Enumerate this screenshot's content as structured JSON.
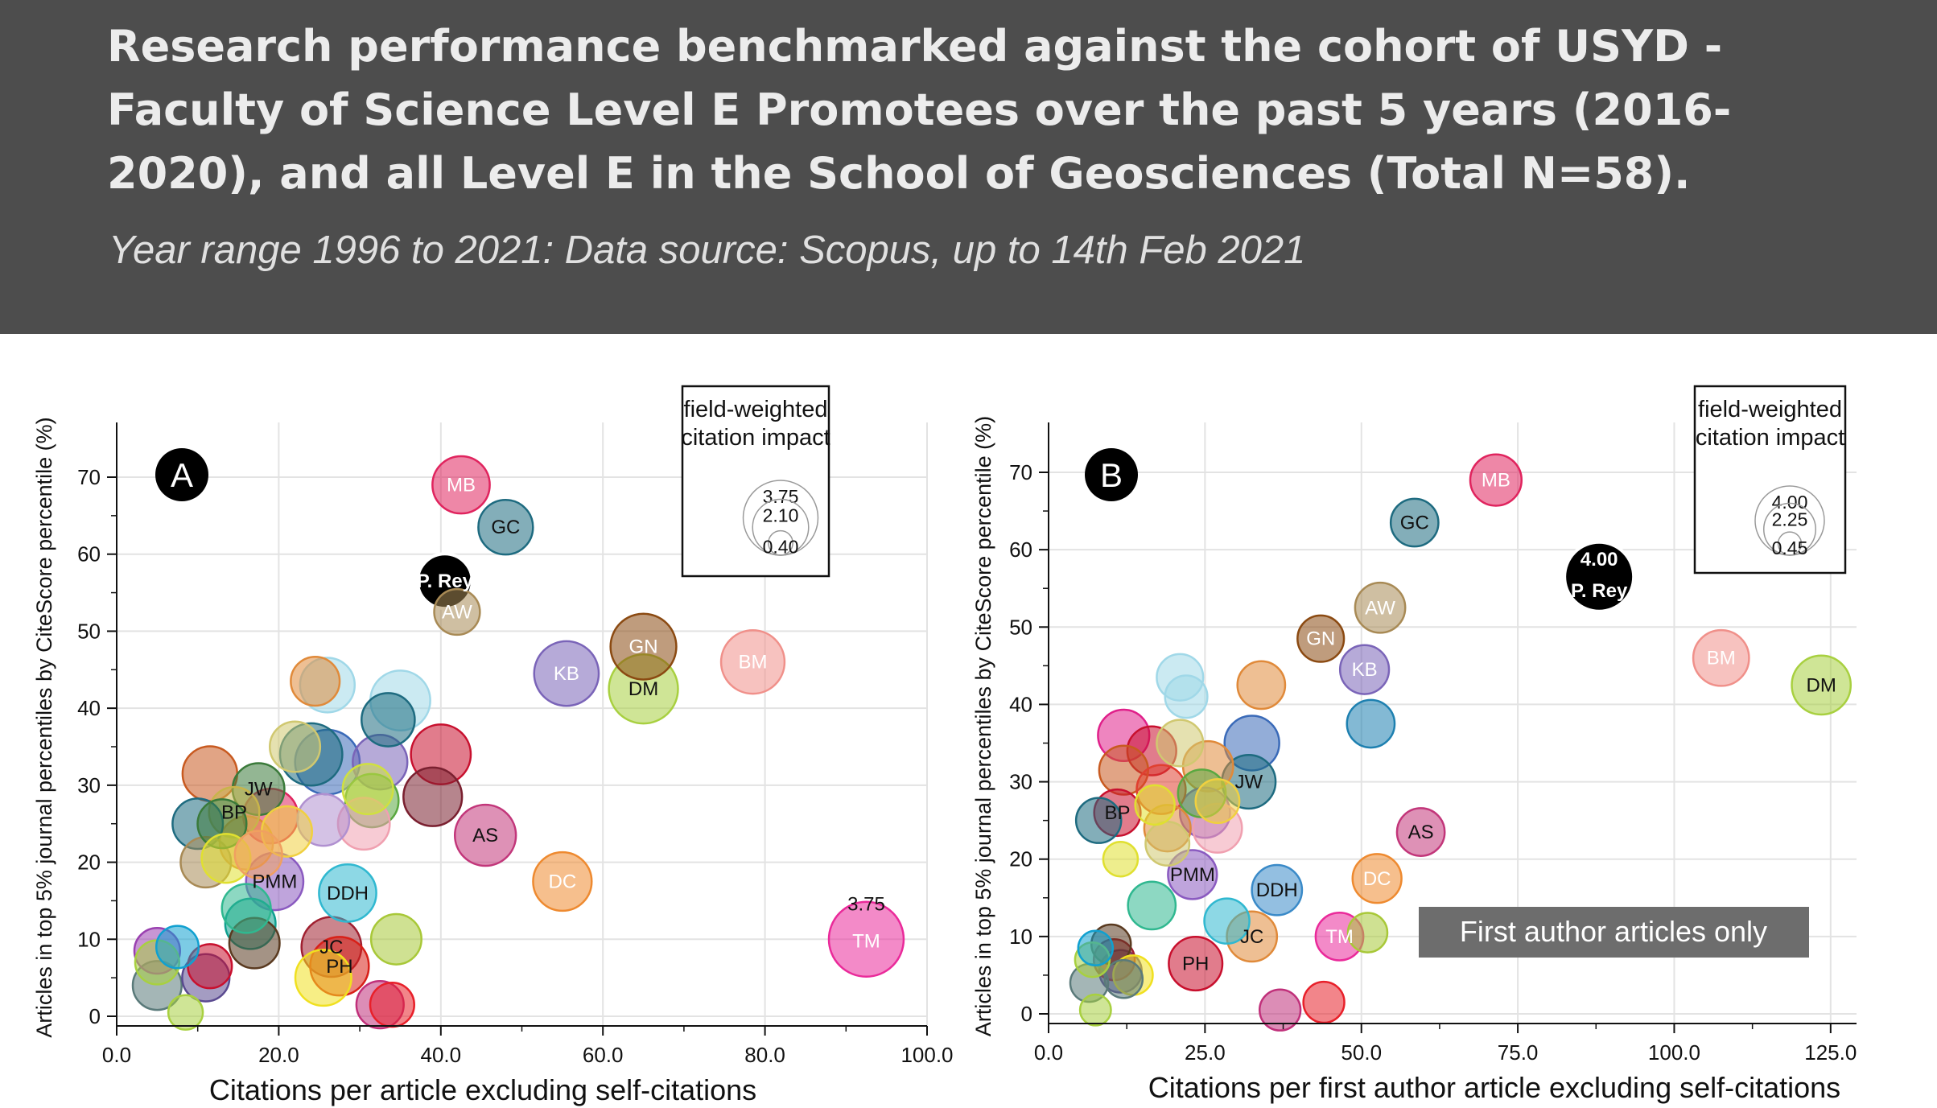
{
  "header": {
    "title": "Research performance benchmarked against the cohort of USYD - Faculty of Science Level E Promotees over the past 5 years (2016-2020), and all Level E in the School of Geosciences (Total N=58).",
    "subtitle": "Year range 1996 to 2021: Data source: Scopus, up to 14th Feb 2021",
    "background_color": "#4d4d4d"
  },
  "chart_data": [
    {
      "type": "scatter",
      "panel_label": "A",
      "xlabel": "Citations per article excluding self-citations",
      "ylabel": "Articles in top 5% journal percentiles by CiteScore percentile (%)",
      "xlim": [
        0,
        100
      ],
      "ylim": [
        0,
        75
      ],
      "xticks": [
        0,
        20,
        40,
        60,
        80,
        100
      ],
      "xtick_labels": [
        "0.0",
        "20.0",
        "40.0",
        "60.0",
        "80.0",
        "100.0"
      ],
      "yticks": [
        0,
        10,
        20,
        30,
        40,
        50,
        60,
        70
      ],
      "ytick_labels": [
        "0",
        "10",
        "20",
        "30",
        "40",
        "50",
        "60",
        "70"
      ],
      "grid": true,
      "size_legend": {
        "title": "field-weighted citation impact",
        "values": [
          "3.75",
          "2.10",
          "0.40"
        ],
        "placement": "top-right"
      },
      "points": [
        {
          "label": "MB",
          "x": 42.5,
          "y": 69,
          "size": 2.2,
          "color": "#e0245e"
        },
        {
          "label": "GC",
          "x": 48,
          "y": 63.5,
          "size": 2.0,
          "color": "#1e6b80"
        },
        {
          "label": "P. Rey",
          "x": 40.5,
          "y": 56.5,
          "size": 2.0,
          "color": "#000000",
          "highlight": true
        },
        {
          "label": "AW",
          "x": 42,
          "y": 52.5,
          "size": 1.4,
          "color": "#a88a55"
        },
        {
          "label": "GN",
          "x": 65,
          "y": 48,
          "size": 2.9,
          "color": "#8b4a12"
        },
        {
          "label": "BM",
          "x": 78.5,
          "y": 46,
          "size": 2.7,
          "color": "#f0908a"
        },
        {
          "label": "KB",
          "x": 55.5,
          "y": 44.5,
          "size": 2.8,
          "color": "#7a64b8"
        },
        {
          "label": "DM",
          "x": 65,
          "y": 42.5,
          "size": 3.2,
          "color": "#a8d040"
        },
        {
          "label": "JW",
          "x": 17.5,
          "y": 29.5,
          "size": 1.8,
          "color": "#3a7a3a"
        },
        {
          "label": "BP",
          "x": 14.5,
          "y": 26.5,
          "size": 1.7,
          "color": "#c8b44a"
        },
        {
          "label": "AS",
          "x": 45.5,
          "y": 23.5,
          "size": 2.5,
          "color": "#c2367a"
        },
        {
          "label": "DC",
          "x": 55,
          "y": 17.5,
          "size": 2.3,
          "color": "#ee8a30"
        },
        {
          "label": "PMM",
          "x": 19.5,
          "y": 17.5,
          "size": 2.2,
          "color": "#8a5ac0"
        },
        {
          "label": "DDH",
          "x": 28.5,
          "y": 16,
          "size": 2.2,
          "color": "#30b8d0"
        },
        {
          "label": "JC",
          "x": 26.5,
          "y": 9,
          "size": 2.4,
          "color": "#a02030"
        },
        {
          "label": "PH",
          "x": 27.5,
          "y": 6.5,
          "size": 2.3,
          "color": "#d82018"
        },
        {
          "label": "TM",
          "x": 92.5,
          "y": 10,
          "size": 3.75,
          "color": "#ea2a9a",
          "value_label": "3.75"
        },
        {
          "label": "",
          "x": 24.5,
          "y": 43.5,
          "size": 1.6,
          "color": "#e08a3a"
        },
        {
          "label": "",
          "x": 26,
          "y": 43,
          "size": 2.0,
          "color": "#a0d8e8"
        },
        {
          "label": "",
          "x": 35,
          "y": 41,
          "size": 2.4,
          "color": "#a0d8e8"
        },
        {
          "label": "",
          "x": 33.5,
          "y": 38.5,
          "size": 1.9,
          "color": "#1e6b80"
        },
        {
          "label": "",
          "x": 22,
          "y": 35,
          "size": 1.7,
          "color": "#d0c870"
        },
        {
          "label": "",
          "x": 24,
          "y": 34,
          "size": 2.6,
          "color": "#1e6b80"
        },
        {
          "label": "",
          "x": 26,
          "y": 33,
          "size": 2.8,
          "color": "#3a6ab8"
        },
        {
          "label": "",
          "x": 32.5,
          "y": 33,
          "size": 2.0,
          "color": "#7a64b8"
        },
        {
          "label": "",
          "x": 40,
          "y": 34,
          "size": 2.4,
          "color": "#c8102e"
        },
        {
          "label": "",
          "x": 11.5,
          "y": 31.5,
          "size": 2.0,
          "color": "#c85a20"
        },
        {
          "label": "",
          "x": 31,
          "y": 29.5,
          "size": 1.7,
          "color": "#d0e040"
        },
        {
          "label": "",
          "x": 31.5,
          "y": 28,
          "size": 1.9,
          "color": "#5aa840"
        },
        {
          "label": "",
          "x": 39,
          "y": 28.5,
          "size": 2.3,
          "color": "#7a2030"
        },
        {
          "label": "",
          "x": 30.5,
          "y": 25,
          "size": 1.8,
          "color": "#f0a0b0"
        },
        {
          "label": "",
          "x": 25.5,
          "y": 25.5,
          "size": 1.8,
          "color": "#b090d0"
        },
        {
          "label": "",
          "x": 19,
          "y": 26,
          "size": 2.0,
          "color": "#e0245e"
        },
        {
          "label": "",
          "x": 10,
          "y": 25,
          "size": 1.7,
          "color": "#1e6b80"
        },
        {
          "label": "",
          "x": 13,
          "y": 25,
          "size": 1.6,
          "color": "#3a7a3a"
        },
        {
          "label": "",
          "x": 21,
          "y": 24,
          "size": 1.7,
          "color": "#f0d040"
        },
        {
          "label": "",
          "x": 16,
          "y": 22.5,
          "size": 1.9,
          "color": "#e08a3a"
        },
        {
          "label": "",
          "x": 11,
          "y": 20,
          "size": 1.7,
          "color": "#a88a55"
        },
        {
          "label": "",
          "x": 13.5,
          "y": 20.5,
          "size": 1.6,
          "color": "#e0e030"
        },
        {
          "label": "",
          "x": 17.5,
          "y": 21,
          "size": 1.5,
          "color": "#f0a060"
        },
        {
          "label": "",
          "x": 16,
          "y": 14,
          "size": 1.6,
          "color": "#30b890"
        },
        {
          "label": "",
          "x": 16.5,
          "y": 12,
          "size": 1.7,
          "color": "#10a090"
        },
        {
          "label": "",
          "x": 34.5,
          "y": 10,
          "size": 1.7,
          "color": "#a8c838"
        },
        {
          "label": "",
          "x": 17,
          "y": 9.5,
          "size": 1.7,
          "color": "#5a3a20"
        },
        {
          "label": "",
          "x": 5,
          "y": 8.5,
          "size": 1.4,
          "color": "#9a40b0"
        },
        {
          "label": "",
          "x": 7.5,
          "y": 9,
          "size": 1.2,
          "color": "#10a0d0"
        },
        {
          "label": "",
          "x": 5,
          "y": 7,
          "size": 1.3,
          "color": "#a8d040"
        },
        {
          "label": "",
          "x": 11.5,
          "y": 6.5,
          "size": 1.3,
          "color": "#c8102e"
        },
        {
          "label": "",
          "x": 11,
          "y": 5,
          "size": 1.5,
          "color": "#5a4a90"
        },
        {
          "label": "",
          "x": 5,
          "y": 4,
          "size": 1.6,
          "color": "#5a7a7a"
        },
        {
          "label": "",
          "x": 25.5,
          "y": 5,
          "size": 2.1,
          "color": "#f0e020"
        },
        {
          "label": "",
          "x": 34,
          "y": 1.5,
          "size": 1.3,
          "color": "#e8202a"
        },
        {
          "label": "",
          "x": 32.5,
          "y": 1.5,
          "size": 1.5,
          "color": "#c0307a"
        },
        {
          "label": "",
          "x": 8.5,
          "y": 0.5,
          "size": 0.8,
          "color": "#a8d040"
        }
      ]
    },
    {
      "type": "scatter",
      "panel_label": "B",
      "xlabel": "Citations per first author article excluding self-citations",
      "ylabel": "Articles in top 5% journal percentiles by CiteScore percentile (%)",
      "xlim": [
        0,
        137.5
      ],
      "ylim": [
        0,
        75
      ],
      "xticks": [
        0,
        25,
        50,
        75,
        100,
        125
      ],
      "xtick_labels": [
        "0.0",
        "25.0",
        "50.0",
        "75.0",
        "100.0",
        "125.0"
      ],
      "yticks": [
        0,
        10,
        20,
        30,
        40,
        50,
        60,
        70
      ],
      "ytick_labels": [
        "0",
        "10",
        "20",
        "30",
        "40",
        "50",
        "60",
        "70"
      ],
      "grid": true,
      "annotation": "First author articles only",
      "size_legend": {
        "title": "field-weighted citation impact",
        "values": [
          "4.00",
          "2.25",
          "0.45"
        ],
        "placement": "top-right"
      },
      "points": [
        {
          "label": "MB",
          "x": 71.5,
          "y": 69,
          "size": 2.2,
          "color": "#e0245e"
        },
        {
          "label": "GC",
          "x": 58.5,
          "y": 63.5,
          "size": 1.9,
          "color": "#1e6b80"
        },
        {
          "label": "P. Rey",
          "x": 88,
          "y": 56.5,
          "size": 4.0,
          "color": "#000000",
          "highlight": true,
          "value_label": "4.00"
        },
        {
          "label": "AW",
          "x": 53,
          "y": 52.5,
          "size": 2.1,
          "color": "#a88a55"
        },
        {
          "label": "GN",
          "x": 43.5,
          "y": 48.5,
          "size": 1.8,
          "color": "#8b4a12"
        },
        {
          "label": "BM",
          "x": 107.5,
          "y": 46,
          "size": 2.6,
          "color": "#f0908a"
        },
        {
          "label": "KB",
          "x": 50.5,
          "y": 44.5,
          "size": 2.0,
          "color": "#7a64b8"
        },
        {
          "label": "DM",
          "x": 123.5,
          "y": 42.5,
          "size": 2.9,
          "color": "#a8d040"
        },
        {
          "label": "JW",
          "x": 32,
          "y": 30,
          "size": 2.4,
          "color": "#1e6b80"
        },
        {
          "label": "BP",
          "x": 11,
          "y": 26,
          "size": 1.8,
          "color": "#c8102e"
        },
        {
          "label": "AS",
          "x": 59.5,
          "y": 23.5,
          "size": 1.9,
          "color": "#c2367a"
        },
        {
          "label": "DC",
          "x": 52.5,
          "y": 17.5,
          "size": 2.0,
          "color": "#ee8a30"
        },
        {
          "label": "PMM",
          "x": 23,
          "y": 18,
          "size": 2.0,
          "color": "#8a5ac0"
        },
        {
          "label": "DDH",
          "x": 36.5,
          "y": 16,
          "size": 2.1,
          "color": "#3a8ac8"
        },
        {
          "label": "JC",
          "x": 32.5,
          "y": 10,
          "size": 2.1,
          "color": "#e08a3a"
        },
        {
          "label": "PH",
          "x": 23.5,
          "y": 6.5,
          "size": 2.4,
          "color": "#c8102e"
        },
        {
          "label": "TM",
          "x": 46.5,
          "y": 10,
          "size": 1.9,
          "color": "#ea2a9a"
        },
        {
          "label": "",
          "x": 21,
          "y": 43.5,
          "size": 1.8,
          "color": "#a0d8e8"
        },
        {
          "label": "",
          "x": 22,
          "y": 41,
          "size": 1.5,
          "color": "#a0d8e8"
        },
        {
          "label": "",
          "x": 34,
          "y": 42.5,
          "size": 1.9,
          "color": "#e08a3a"
        },
        {
          "label": "",
          "x": 51.5,
          "y": 37.5,
          "size": 1.9,
          "color": "#1e80b0"
        },
        {
          "label": "",
          "x": 12,
          "y": 36,
          "size": 2.2,
          "color": "#e0208a"
        },
        {
          "label": "",
          "x": 16.5,
          "y": 34,
          "size": 2.0,
          "color": "#c8102e"
        },
        {
          "label": "",
          "x": 21,
          "y": 35,
          "size": 1.8,
          "color": "#d0c870"
        },
        {
          "label": "",
          "x": 25.5,
          "y": 32,
          "size": 2.1,
          "color": "#e08a3a"
        },
        {
          "label": "",
          "x": 32.5,
          "y": 35,
          "size": 2.5,
          "color": "#3a6ab8"
        },
        {
          "label": "",
          "x": 12,
          "y": 31.5,
          "size": 2.0,
          "color": "#c85a20"
        },
        {
          "label": "",
          "x": 18,
          "y": 29,
          "size": 2.0,
          "color": "#e04030"
        },
        {
          "label": "",
          "x": 24.5,
          "y": 28.5,
          "size": 1.9,
          "color": "#5aa840"
        },
        {
          "label": "",
          "x": 25,
          "y": 26,
          "size": 2.1,
          "color": "#8a5ac0"
        },
        {
          "label": "",
          "x": 27,
          "y": 27.5,
          "size": 1.6,
          "color": "#f0d040"
        },
        {
          "label": "",
          "x": 27,
          "y": 24,
          "size": 2.0,
          "color": "#f0a0b0"
        },
        {
          "label": "",
          "x": 19,
          "y": 22,
          "size": 1.6,
          "color": "#d0c870"
        },
        {
          "label": "",
          "x": 19,
          "y": 24,
          "size": 1.8,
          "color": "#e08a3a"
        },
        {
          "label": "",
          "x": 8,
          "y": 25,
          "size": 1.7,
          "color": "#1e6b80"
        },
        {
          "label": "",
          "x": 11.5,
          "y": 20,
          "size": 1.0,
          "color": "#e0e030"
        },
        {
          "label": "",
          "x": 17,
          "y": 27,
          "size": 1.3,
          "color": "#e0e030"
        },
        {
          "label": "",
          "x": 16.5,
          "y": 14,
          "size": 1.9,
          "color": "#30b890"
        },
        {
          "label": "",
          "x": 28.5,
          "y": 12,
          "size": 1.7,
          "color": "#30b8d0"
        },
        {
          "label": "",
          "x": 51,
          "y": 10.5,
          "size": 1.3,
          "color": "#a8c838"
        },
        {
          "label": "",
          "x": 7,
          "y": 7,
          "size": 1.0,
          "color": "#a8d040"
        },
        {
          "label": "",
          "x": 7.5,
          "y": 8.5,
          "size": 1.0,
          "color": "#10a0d0"
        },
        {
          "label": "",
          "x": 10,
          "y": 9,
          "size": 1.3,
          "color": "#5a3a20"
        },
        {
          "label": "",
          "x": 10.5,
          "y": 7,
          "size": 1.4,
          "color": "#a02030"
        },
        {
          "label": "",
          "x": 11.5,
          "y": 5.5,
          "size": 1.5,
          "color": "#5a4a90"
        },
        {
          "label": "",
          "x": 13.5,
          "y": 5,
          "size": 1.3,
          "color": "#f0e020"
        },
        {
          "label": "",
          "x": 6.5,
          "y": 4,
          "size": 1.2,
          "color": "#5a7a7a"
        },
        {
          "label": "",
          "x": 12,
          "y": 4.5,
          "size": 1.2,
          "color": "#5a7a7a"
        },
        {
          "label": "",
          "x": 37,
          "y": 0.5,
          "size": 1.4,
          "color": "#c0307a"
        },
        {
          "label": "",
          "x": 44,
          "y": 1.5,
          "size": 1.4,
          "color": "#e8202a"
        },
        {
          "label": "",
          "x": 7.5,
          "y": 0.5,
          "size": 0.8,
          "color": "#a8d040"
        }
      ]
    }
  ]
}
